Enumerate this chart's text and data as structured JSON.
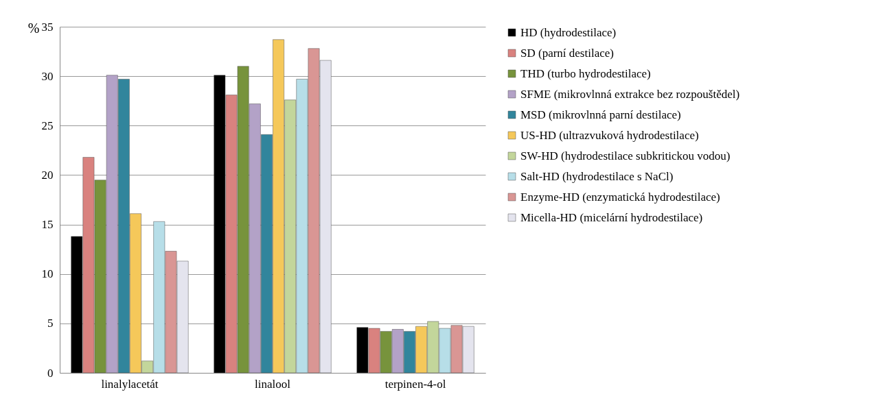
{
  "chart_data": {
    "type": "bar",
    "ylabel": "%",
    "categories": [
      "linalylacetát",
      "linalool",
      "terpinen-4-ol"
    ],
    "series": [
      {
        "name": "HD (hydrodestilace)",
        "color": "#000000",
        "values": [
          13.8,
          30.1,
          4.6
        ]
      },
      {
        "name": "SD (parní destilace)",
        "color": "#d9827f",
        "values": [
          21.8,
          28.1,
          4.5
        ]
      },
      {
        "name": "THD (turbo hydrodestilace)",
        "color": "#77933c",
        "values": [
          19.5,
          31.0,
          4.2
        ]
      },
      {
        "name": "SFME (mikrovlnná extrakce bez rozpouštědel)",
        "color": "#b3a2c7",
        "values": [
          30.1,
          27.2,
          4.4
        ]
      },
      {
        "name": "MSD (mikrovlnná parní destilace)",
        "color": "#31859c",
        "values": [
          29.7,
          24.1,
          4.2
        ]
      },
      {
        "name": "US-HD (ultrazvuková hydrodestilace)",
        "color": "#f5c85a",
        "values": [
          16.1,
          33.7,
          4.7
        ]
      },
      {
        "name": "SW-HD (hydrodestilace subkritickou vodou)",
        "color": "#c3d69b",
        "values": [
          1.2,
          27.6,
          5.2
        ]
      },
      {
        "name": "Salt-HD (hydrodestilace s NaCl)",
        "color": "#b7dee8",
        "values": [
          15.3,
          29.7,
          4.5
        ]
      },
      {
        "name": "Enzyme-HD (enzymatická hydrodestilace)",
        "color": "#d99694",
        "values": [
          12.3,
          32.8,
          4.8
        ]
      },
      {
        "name": "Micella-HD (micelární hydrodestilace)",
        "color": "#e4e4ee",
        "values": [
          11.3,
          31.6,
          4.7
        ]
      }
    ],
    "ylim": [
      0,
      35
    ],
    "yticks": [
      0,
      5,
      10,
      15,
      20,
      25,
      30,
      35
    ],
    "grid": "y",
    "legend": "right"
  }
}
